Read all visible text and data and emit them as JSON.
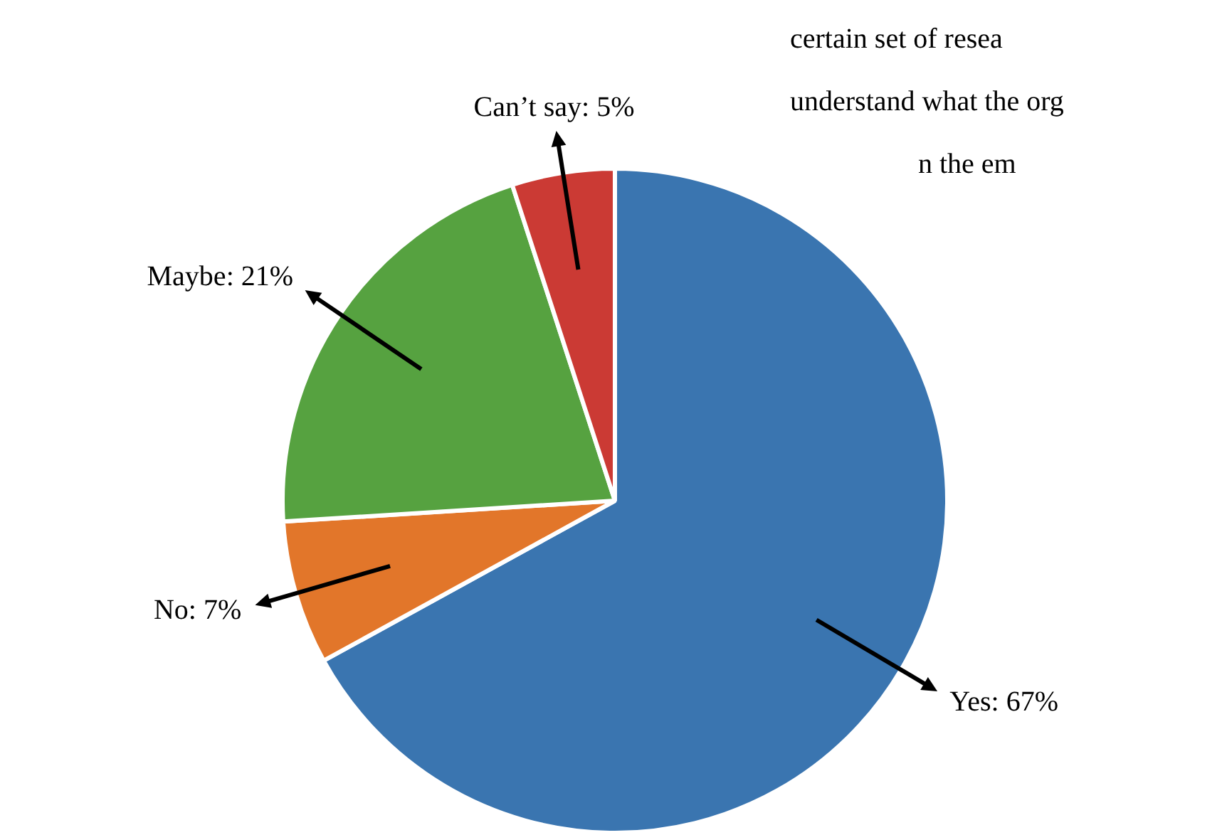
{
  "chart_data": {
    "type": "pie",
    "categories": [
      "Yes",
      "No",
      "Maybe",
      "Can’t say"
    ],
    "values": [
      67,
      7,
      21,
      5
    ],
    "value_labels": [
      "67%",
      "7%",
      "21%",
      "5%"
    ],
    "colors": [
      "#3a75b0",
      "#e2762a",
      "#56a240",
      "#cb3a34"
    ],
    "legend": false,
    "annotations": [
      "certain set of resea",
      "understand what the org",
      "n the em"
    ]
  }
}
